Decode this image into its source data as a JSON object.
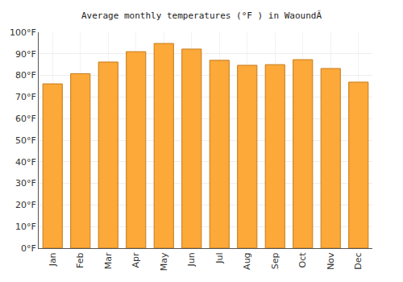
{
  "chart_data": {
    "type": "bar",
    "title": "Average monthly temperatures (°F ) in WaoundÃ",
    "categories": [
      "Jan",
      "Feb",
      "Mar",
      "Apr",
      "May",
      "Jun",
      "Jul",
      "Aug",
      "Sep",
      "Oct",
      "Nov",
      "Dec"
    ],
    "values": [
      76.1,
      80.8,
      86.2,
      91,
      94.8,
      92.2,
      87,
      84.7,
      85,
      87.3,
      83.2,
      76.9
    ],
    "color": "#fca93a",
    "ylim": [
      0,
      100
    ],
    "yticks": [
      {
        "value": 0,
        "label": "0°F"
      },
      {
        "value": 10,
        "label": "10°F"
      },
      {
        "value": 20,
        "label": "20°F"
      },
      {
        "value": 30,
        "label": "30°F"
      },
      {
        "value": 40,
        "label": "40°F"
      },
      {
        "value": 50,
        "label": "50°F"
      },
      {
        "value": 60,
        "label": "60°F"
      },
      {
        "value": 70,
        "label": "70°F"
      },
      {
        "value": 80,
        "label": "80°F"
      },
      {
        "value": 90,
        "label": "90°F"
      },
      {
        "value": 100,
        "label": "100°F"
      }
    ],
    "grid": true
  }
}
